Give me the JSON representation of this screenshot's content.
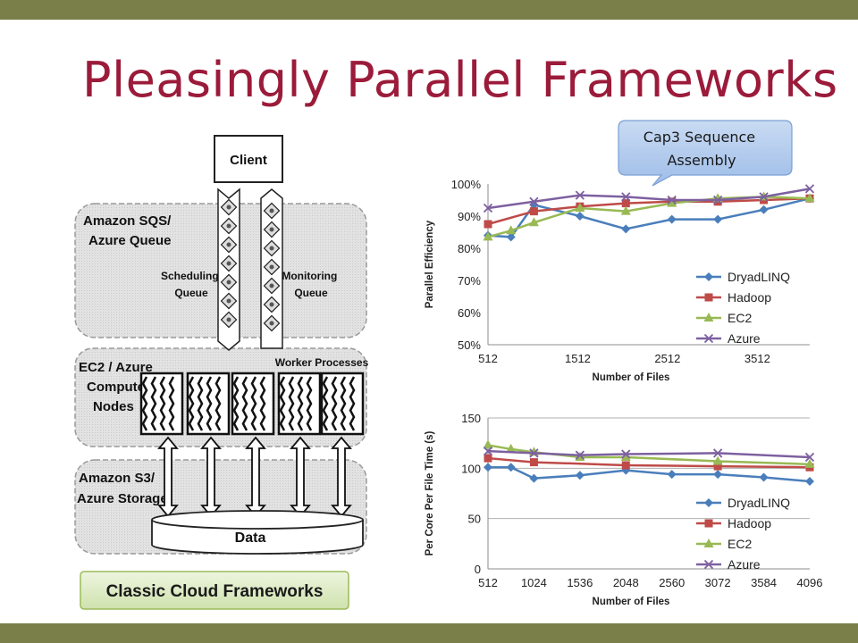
{
  "slide": {
    "title": "Pleasingly Parallel Frameworks",
    "colors": {
      "title": "#9b1b3a",
      "band": "#7a7f4a"
    }
  },
  "diagram": {
    "client": "Client",
    "queue_box": [
      "Amazon SQS/",
      "Azure Queue"
    ],
    "scheduling_queue": [
      "Scheduling",
      "Queue"
    ],
    "monitoring_queue": [
      "Monitoring",
      "Queue"
    ],
    "compute_box": [
      "EC2 / Azure",
      "Compute",
      "Nodes"
    ],
    "worker_processes": "Worker Processes",
    "storage_box": [
      "Amazon S3/",
      "Azure Storage"
    ],
    "data": "Data",
    "caption": "Classic Cloud Frameworks"
  },
  "callout": {
    "lines": [
      "Cap3 Sequence",
      "Assembly"
    ]
  },
  "chart_data": [
    {
      "type": "line",
      "xlabel": "Number of Files",
      "ylabel": "Parallel Efficiency",
      "xlim": [
        512,
        4096
      ],
      "xticks": [
        "512",
        "1512",
        "2512",
        "3512"
      ],
      "ylim": [
        50,
        100
      ],
      "yticks": [
        "50%",
        "60%",
        "70%",
        "80%",
        "90%",
        "100%"
      ],
      "legend_position": "right",
      "grid": false,
      "series": [
        {
          "name": "DryadLINQ",
          "color": "#4a7ebb",
          "marker": "diamond",
          "x": [
            512,
            768,
            1024,
            1536,
            2048,
            2560,
            3072,
            3584,
            4096
          ],
          "y": [
            84,
            83.5,
            93.5,
            90,
            86,
            89,
            89,
            92,
            95.5
          ]
        },
        {
          "name": "Hadoop",
          "color": "#be4b48",
          "marker": "square",
          "x": [
            512,
            1024,
            1536,
            2048,
            2560,
            3072,
            3584,
            4096
          ],
          "y": [
            87.5,
            91.5,
            93,
            94,
            94.5,
            94.5,
            95,
            95.5
          ]
        },
        {
          "name": "EC2",
          "color": "#98b954",
          "marker": "triangle",
          "x": [
            512,
            768,
            1024,
            1536,
            2048,
            2560,
            3072,
            3584,
            4096
          ],
          "y": [
            83.5,
            85.5,
            88,
            92.5,
            91.5,
            94,
            95.5,
            96,
            95.5
          ]
        },
        {
          "name": "Azure",
          "color": "#7d60a0",
          "marker": "x",
          "x": [
            512,
            1024,
            1536,
            2048,
            2560,
            3072,
            3584,
            4096
          ],
          "y": [
            92.5,
            94.5,
            96.5,
            96,
            95,
            95,
            96,
            98.5
          ]
        }
      ]
    },
    {
      "type": "line",
      "xlabel": "Number of Files",
      "ylabel": "Per Core Per File Time (s)",
      "xlim": [
        512,
        4096
      ],
      "xticks": [
        "512",
        "1024",
        "1536",
        "2048",
        "2560",
        "3072",
        "3584",
        "4096"
      ],
      "ylim": [
        0,
        150
      ],
      "yticks": [
        "0",
        "50",
        "100",
        "150"
      ],
      "legend_position": "right",
      "grid": true,
      "series": [
        {
          "name": "DryadLINQ",
          "color": "#4a7ebb",
          "marker": "diamond",
          "x": [
            512,
            768,
            1024,
            1536,
            2048,
            2560,
            3072,
            3584,
            4096
          ],
          "y": [
            101,
            101,
            90,
            93,
            98,
            94,
            94,
            91,
            87
          ]
        },
        {
          "name": "Hadoop",
          "color": "#be4b48",
          "marker": "square",
          "x": [
            512,
            1024,
            2048,
            3072,
            4096
          ],
          "y": [
            110,
            106,
            103,
            102,
            101
          ]
        },
        {
          "name": "EC2",
          "color": "#98b954",
          "marker": "triangle",
          "x": [
            512,
            768,
            1024,
            1536,
            2048,
            3072,
            4096
          ],
          "y": [
            123,
            119,
            116,
            111,
            111,
            107,
            104
          ]
        },
        {
          "name": "Azure",
          "color": "#7d60a0",
          "marker": "x",
          "x": [
            512,
            1024,
            1536,
            2048,
            3072,
            4096
          ],
          "y": [
            117,
            115,
            113,
            114,
            115,
            111
          ]
        }
      ]
    }
  ]
}
